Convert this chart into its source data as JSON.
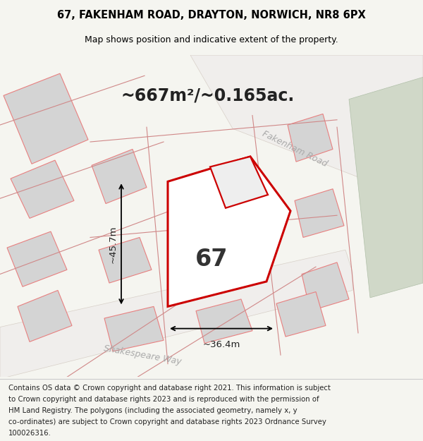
{
  "title_line1": "67, FAKENHAM ROAD, DRAYTON, NORWICH, NR8 6PX",
  "title_line2": "Map shows position and indicative extent of the property.",
  "area_text": "~667m²/~0.165ac.",
  "dim_height": "~45.7m",
  "dim_width": "~36.4m",
  "label_67": "67",
  "road_label1": "Fakenham Road",
  "road_label2": "Shakespeare Way",
  "footer_lines": [
    "Contains OS data © Crown copyright and database right 2021. This information is subject",
    "to Crown copyright and database rights 2023 and is reproduced with the permission of",
    "HM Land Registry. The polygons (including the associated geometry, namely x, y",
    "co-ordinates) are subject to Crown copyright and database rights 2023 Ordnance Survey",
    "100026316."
  ],
  "bg_color": "#f5f5f0",
  "map_bg": "#ffffff",
  "plot_outline_color": "#cc0000",
  "other_outline_color": "#e88080",
  "grey_area_color": "#d0d8c8",
  "footer_bg": "#ffffff"
}
